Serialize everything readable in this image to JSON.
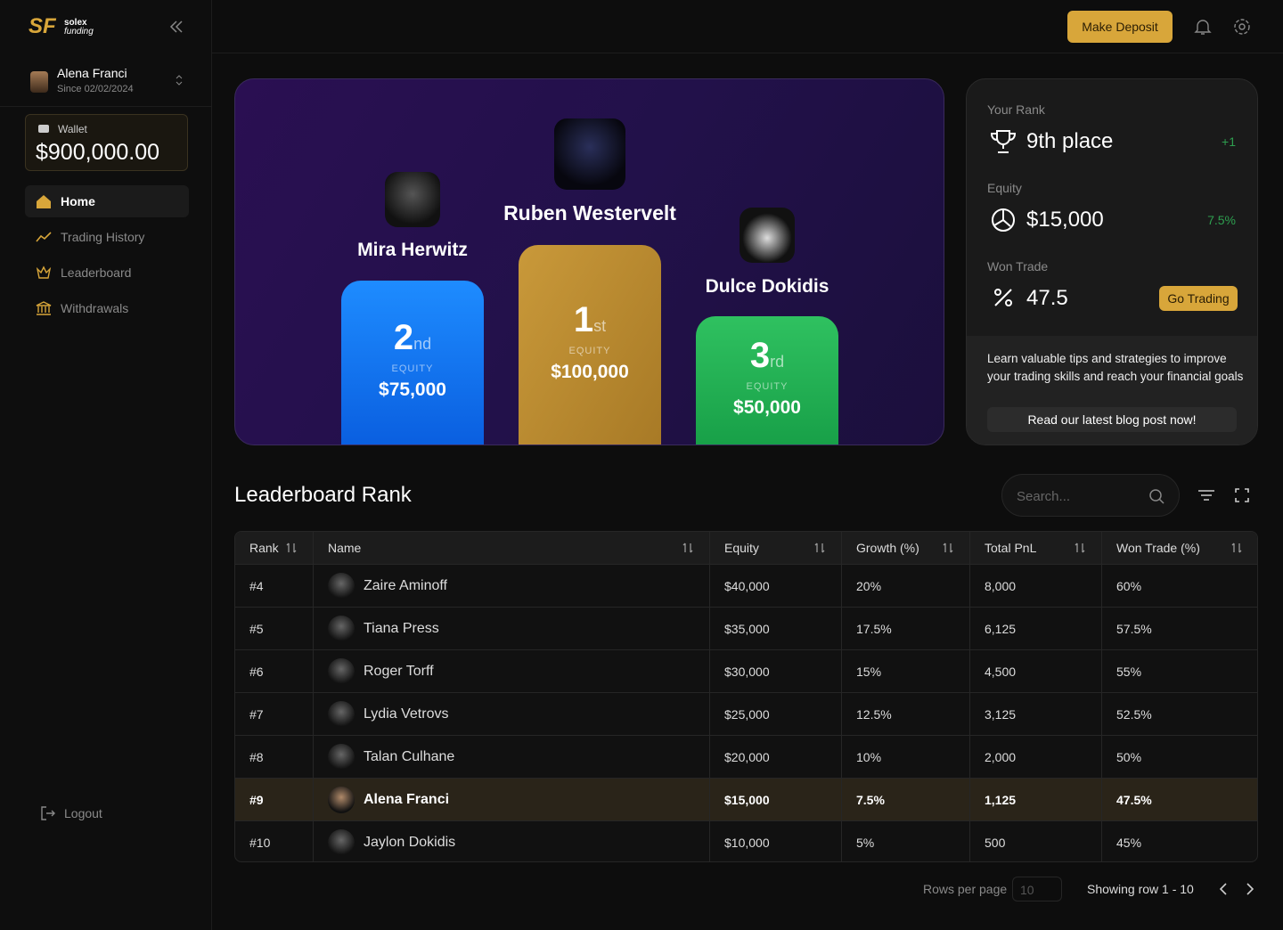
{
  "sidebar": {
    "logo": {
      "mark": "SF",
      "brand": "solex",
      "sub": "funding"
    },
    "user": {
      "name": "Alena Franci",
      "since": "Since 02/02/2024"
    },
    "wallet": {
      "label": "Wallet",
      "amount": "$900,000.00"
    },
    "nav": [
      "Home",
      "Trading History",
      "Leaderboard",
      "Withdrawals"
    ],
    "logout": "Logout"
  },
  "header": {
    "deposit_button": "Make Deposit"
  },
  "podium": [
    {
      "name": "Mira Herwitz",
      "place": "2",
      "suffix": "nd",
      "equity_label": "EQUITY",
      "equity": "$75,000"
    },
    {
      "name": "Ruben Westervelt",
      "place": "1",
      "suffix": "st",
      "equity_label": "EQUITY",
      "equity": "$100,000"
    },
    {
      "name": "Dulce Dokidis",
      "place": "3",
      "suffix": "rd",
      "equity_label": "EQUITY",
      "equity": "$50,000"
    }
  ],
  "rank_card": {
    "rank_label": "Your Rank",
    "rank": "9th place",
    "rank_change": "+1",
    "equity_label": "Equity",
    "equity": "$15,000",
    "equity_change": "7.5%",
    "won_label": "Won Trade",
    "won": "47.5",
    "trade_button": "Go Trading",
    "tip": "Learn valuable tips and strategies to improve your trading skills and reach your financial goals",
    "blog_button": "Read our latest blog post now!"
  },
  "leaderboard": {
    "title": "Leaderboard Rank",
    "search_placeholder": "Search...",
    "columns": [
      "Rank",
      "Name",
      "Equity",
      "Growth (%)",
      "Total PnL",
      "Won Trade (%)"
    ],
    "rows": [
      [
        "#4",
        "Zaire Aminoff",
        "$40,000",
        "20%",
        "8,000",
        "60%"
      ],
      [
        "#5",
        "Tiana Press",
        "$35,000",
        "17.5%",
        "6,125",
        "57.5%"
      ],
      [
        "#6",
        "Roger Torff",
        "$30,000",
        "15%",
        "4,500",
        "55%"
      ],
      [
        "#7",
        "Lydia Vetrovs",
        "$25,000",
        "12.5%",
        "3,125",
        "52.5%"
      ],
      [
        "#8",
        "Talan Culhane",
        "$20,000",
        "10%",
        "2,000",
        "50%"
      ],
      [
        "#9",
        "Alena Franci",
        "$15,000",
        "7.5%",
        "1,125",
        "47.5%"
      ],
      [
        "#10",
        "Jaylon Dokidis",
        "$10,000",
        "5%",
        "500",
        "45%"
      ]
    ],
    "highlight_row": 5
  },
  "pagination": {
    "rows_label": "Rows per page",
    "rows_value": "10",
    "showing": "Showing row 1 - 10"
  }
}
